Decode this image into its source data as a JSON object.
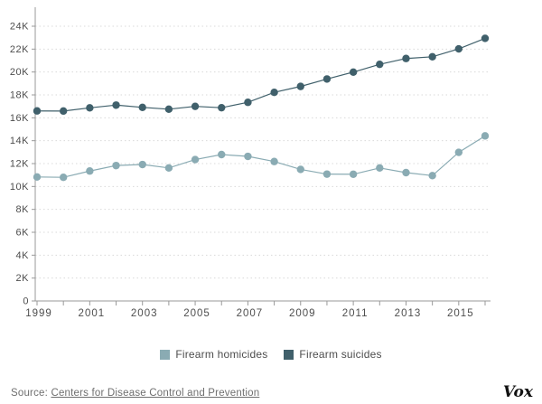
{
  "chart_data": {
    "type": "line",
    "x": [
      1999,
      2000,
      2001,
      2002,
      2003,
      2004,
      2005,
      2006,
      2007,
      2008,
      2009,
      2010,
      2011,
      2012,
      2013,
      2014,
      2015,
      2016
    ],
    "series": [
      {
        "name": "Firearm homicides",
        "color": "#8aabb3",
        "values": [
          10830,
          10800,
          11350,
          11830,
          11920,
          11620,
          12350,
          12790,
          12630,
          12180,
          11490,
          11080,
          11070,
          11620,
          11210,
          10950,
          12980,
          14420
        ]
      },
      {
        "name": "Firearm suicides",
        "color": "#40606b",
        "values": [
          16600,
          16590,
          16870,
          17110,
          16910,
          16750,
          17000,
          16880,
          17350,
          18220,
          18740,
          19390,
          19990,
          20670,
          21180,
          21330,
          22020,
          22940
        ]
      }
    ],
    "title": "",
    "xlabel": "",
    "ylabel": "",
    "ylim": [
      0,
      24000
    ],
    "ytick_step": 2000,
    "ytick_labels": [
      "0",
      "2K",
      "4K",
      "6K",
      "8K",
      "10K",
      "12K",
      "14K",
      "16K",
      "18K",
      "20K",
      "22K",
      "24K"
    ],
    "xtick_labels": [
      "1999",
      "2001",
      "2003",
      "2005",
      "2007",
      "2009",
      "2011",
      "2013",
      "2015"
    ],
    "grid": "horizontal-dashed",
    "legend_position": "bottom-center"
  },
  "legend": {
    "items": [
      {
        "label": "Firearm homicides",
        "color": "#8aabb3"
      },
      {
        "label": "Firearm suicides",
        "color": "#40606b"
      }
    ]
  },
  "footer": {
    "source_prefix": "Source: ",
    "source_link": "Centers for Disease Control and Prevention",
    "logo": "Vox"
  },
  "colors": {
    "background": "#ffffff",
    "gridline": "#d9d9d9",
    "axis": "#999999",
    "tick_text": "#4d4d4d",
    "footer_text": "#6f6f6f",
    "logo_text": "#111111"
  }
}
